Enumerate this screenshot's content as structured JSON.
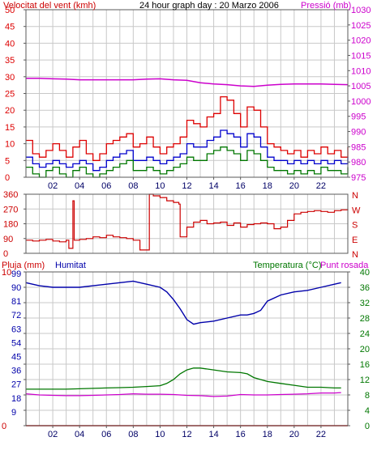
{
  "header": {
    "wind_label": "Velocitat del vent (kmh)",
    "title": "24 hour graph day : 20 Marzo 2006",
    "pressure_label": "Pressió (mb)"
  },
  "lower_header": {
    "rain_label": "Pluja (mm)",
    "humidity_label": "Humitat",
    "temperature_label": "Temperatura (°C)",
    "dewpoint_label": "Punt rosada"
  },
  "colors": {
    "wind_gust": "#dd0000",
    "wind_avg": "#0000cc",
    "wind_low": "#007700",
    "pressure": "#cc00cc",
    "direction": "#cc0000",
    "humidity": "#0000aa",
    "temperature": "#007700",
    "dewpoint": "#cc00cc",
    "rain": "#cc0000",
    "frame": "#5a5a5a",
    "grid": "#c8c8c8"
  },
  "x_ticks": [
    "02",
    "04",
    "06",
    "08",
    "10",
    "12",
    "14",
    "16",
    "18",
    "20",
    "22"
  ],
  "chart_data": [
    {
      "type": "line",
      "name": "wind-pressure",
      "x_range": [
        0,
        24
      ],
      "left_axis": {
        "label": "Velocitat del vent (kmh)",
        "ticks": [
          0,
          5,
          10,
          15,
          20,
          25,
          30,
          35,
          40,
          45,
          50
        ],
        "range": [
          0,
          50
        ]
      },
      "right_axis": {
        "label": "Pressió (mb)",
        "ticks": [
          975,
          980,
          985,
          990,
          995,
          1000,
          1005,
          1010,
          1015,
          1020,
          1025,
          1030
        ],
        "range": [
          975,
          1030
        ]
      },
      "grid": true,
      "series": [
        {
          "role": "gust",
          "axis": "left",
          "x": [
            0,
            0.5,
            1,
            1.5,
            2,
            2.5,
            3,
            3.5,
            4,
            4.5,
            5,
            5.5,
            6,
            6.5,
            7,
            7.5,
            8,
            8.5,
            9,
            9.5,
            10,
            10.5,
            11,
            11.5,
            12,
            12.5,
            13,
            13.5,
            14,
            14.5,
            15,
            15.5,
            16,
            16.5,
            17,
            17.5,
            18,
            18.5,
            19,
            19.5,
            20,
            20.5,
            21,
            21.5,
            22,
            22.5,
            23,
            23.5,
            24
          ],
          "y": [
            11,
            7,
            6,
            8,
            10,
            8,
            6,
            9,
            11,
            7,
            5,
            7,
            10,
            11,
            12,
            13,
            9,
            10,
            12,
            9,
            7,
            9,
            10,
            12,
            17,
            16,
            15,
            18,
            19,
            24,
            23,
            19,
            15,
            21,
            20,
            15,
            10,
            9,
            8,
            7,
            8,
            6,
            8,
            7,
            9,
            7,
            8,
            6,
            9
          ]
        },
        {
          "role": "avg",
          "axis": "left",
          "x": [
            0,
            0.5,
            1,
            1.5,
            2,
            2.5,
            3,
            3.5,
            4,
            4.5,
            5,
            5.5,
            6,
            6.5,
            7,
            7.5,
            8,
            8.5,
            9,
            9.5,
            10,
            10.5,
            11,
            11.5,
            12,
            12.5,
            13,
            13.5,
            14,
            14.5,
            15,
            15.5,
            16,
            16.5,
            17,
            17.5,
            18,
            18.5,
            19,
            19.5,
            20,
            20.5,
            21,
            21.5,
            22,
            22.5,
            23,
            23.5,
            24
          ],
          "y": [
            6,
            4,
            3,
            4,
            5,
            4,
            3,
            4,
            5,
            4,
            2,
            3,
            5,
            6,
            7,
            8,
            5,
            5,
            6,
            5,
            4,
            5,
            6,
            7,
            10,
            9,
            9,
            11,
            12,
            14,
            13,
            12,
            9,
            13,
            12,
            9,
            6,
            5,
            5,
            4,
            5,
            4,
            5,
            4,
            5,
            4,
            5,
            4,
            6
          ]
        },
        {
          "role": "low",
          "axis": "left",
          "x": [
            0,
            0.5,
            1,
            1.5,
            2,
            2.5,
            3,
            3.5,
            4,
            4.5,
            5,
            5.5,
            6,
            6.5,
            7,
            7.5,
            8,
            8.5,
            9,
            9.5,
            10,
            10.5,
            11,
            11.5,
            12,
            12.5,
            13,
            13.5,
            14,
            14.5,
            15,
            15.5,
            16,
            16.5,
            17,
            17.5,
            18,
            18.5,
            19,
            19.5,
            20,
            20.5,
            21,
            21.5,
            22,
            22.5,
            23,
            23.5,
            24
          ],
          "y": [
            3,
            1,
            0,
            2,
            3,
            1,
            0,
            2,
            3,
            1,
            0,
            1,
            2,
            3,
            4,
            5,
            2,
            2,
            3,
            2,
            1,
            2,
            3,
            4,
            6,
            5,
            5,
            7,
            8,
            9,
            8,
            7,
            5,
            8,
            7,
            5,
            3,
            2,
            2,
            1,
            2,
            1,
            2,
            1,
            3,
            2,
            2,
            1,
            3
          ]
        },
        {
          "role": "pressure",
          "axis": "right",
          "x": [
            0,
            1,
            2,
            3,
            4,
            5,
            6,
            7,
            8,
            9,
            10,
            11,
            12,
            13,
            14,
            15,
            16,
            17,
            18,
            19,
            20,
            21,
            22,
            23,
            24
          ],
          "y": [
            1007.5,
            1007.5,
            1007.3,
            1007.2,
            1007,
            1007,
            1007,
            1007,
            1007,
            1007.2,
            1007.3,
            1007,
            1006.8,
            1006,
            1005.6,
            1005.4,
            1005,
            1004.8,
            1005.2,
            1005.5,
            1005.6,
            1005.6,
            1005.6,
            1005.5,
            1005.4
          ]
        }
      ]
    },
    {
      "type": "line",
      "name": "wind-direction",
      "x_range": [
        0,
        24
      ],
      "left_axis": {
        "ticks": [
          0,
          90,
          180,
          270,
          360
        ],
        "range": [
          0,
          360
        ]
      },
      "right_axis": {
        "ticks": [
          "N",
          "W",
          "S",
          "E",
          "N"
        ]
      },
      "grid": true,
      "series": [
        {
          "role": "direction",
          "x": [
            0,
            0.5,
            1,
            1.5,
            2,
            2.5,
            3,
            3.2,
            3.4,
            3.5,
            3.6,
            4,
            4.5,
            5,
            5.5,
            6,
            6.5,
            7,
            7.5,
            8,
            8.5,
            9,
            9.2,
            9.4,
            9.5,
            10,
            10.5,
            11,
            11.4,
            11.5,
            12,
            12.5,
            13,
            13.5,
            14,
            14.5,
            15,
            15.5,
            16,
            16.5,
            17,
            17.5,
            18,
            18.5,
            19,
            19.5,
            20,
            20.5,
            21,
            21.5,
            22,
            22.5,
            23,
            23.5,
            24
          ],
          "y": [
            80,
            75,
            80,
            85,
            75,
            70,
            80,
            30,
            30,
            320,
            80,
            85,
            90,
            100,
            95,
            110,
            100,
            95,
            90,
            80,
            20,
            20,
            360,
            360,
            350,
            340,
            320,
            310,
            300,
            100,
            160,
            190,
            200,
            180,
            185,
            190,
            170,
            185,
            160,
            175,
            180,
            185,
            180,
            150,
            160,
            200,
            240,
            250,
            255,
            260,
            255,
            250,
            260,
            265,
            270
          ]
        }
      ]
    },
    {
      "type": "line",
      "name": "rain-humidity-temperature",
      "x_range": [
        0,
        24
      ],
      "left_axis": {
        "label": "Pluja (mm)",
        "ticks": [
          0,
          1,
          2,
          3,
          4,
          5,
          6,
          7,
          8,
          9,
          10
        ],
        "range": [
          0,
          10
        ],
        "tick_labels": [
          "0",
          "",
          "",
          "",
          "",
          "",
          "",
          "",
          "",
          "",
          "10"
        ]
      },
      "humidity_axis": {
        "label": "Humitat",
        "ticks": [
          0,
          9,
          18,
          27,
          36,
          45,
          54,
          63,
          72,
          81,
          90,
          99
        ],
        "range": [
          0,
          100
        ]
      },
      "right_axis": {
        "label": "Temperatura (°C)",
        "ticks": [
          0,
          2,
          4,
          6,
          8,
          10,
          12,
          14,
          16,
          18,
          20,
          22,
          24,
          26,
          28,
          30,
          32,
          34,
          36,
          38,
          40
        ],
        "range": [
          0,
          40
        ]
      },
      "grid": true,
      "series": [
        {
          "role": "humidity",
          "name": "Humitat",
          "x": [
            0,
            1,
            2,
            3,
            4,
            5,
            6,
            7,
            8,
            9,
            10,
            10.5,
            11,
            11.5,
            12,
            12.5,
            13,
            14,
            15,
            16,
            16.5,
            17,
            17.5,
            18,
            19,
            20,
            21,
            22,
            23,
            23.5
          ],
          "y": [
            93,
            91,
            90,
            90,
            90,
            91,
            92,
            93,
            94,
            92,
            90,
            87,
            82,
            76,
            69,
            66,
            67,
            68,
            70,
            72,
            72,
            73,
            75,
            81,
            85,
            87,
            88,
            90,
            92,
            93
          ]
        },
        {
          "role": "temperature",
          "name": "Temperatura (°C)",
          "x": [
            0,
            1,
            2,
            3,
            4,
            5,
            6,
            7,
            8,
            9,
            10,
            10.5,
            11,
            11.5,
            12,
            12.5,
            13,
            14,
            15,
            16,
            16.5,
            17,
            17.5,
            18,
            19,
            20,
            21,
            22,
            23,
            23.5
          ],
          "y": [
            9.5,
            9.5,
            9.5,
            9.5,
            9.6,
            9.7,
            9.8,
            9.9,
            10,
            10.2,
            10.4,
            11,
            12,
            13.5,
            14.5,
            15,
            15,
            14.5,
            14,
            13.8,
            13.5,
            12.5,
            12,
            11.5,
            11,
            10.5,
            10,
            10,
            9.8,
            9.8
          ]
        },
        {
          "role": "dewpoint",
          "name": "Punt rosada",
          "x": [
            0,
            1,
            2,
            3,
            4,
            5,
            6,
            7,
            8,
            9,
            10,
            11,
            12,
            13,
            14,
            15,
            16,
            17,
            18,
            19,
            20,
            21,
            22,
            23,
            23.5
          ],
          "y": [
            8.3,
            8,
            7.9,
            7.8,
            7.8,
            7.9,
            8,
            8.1,
            8.3,
            8.2,
            8.2,
            8.1,
            7.9,
            7.8,
            7.6,
            7.7,
            8.1,
            8,
            8,
            8.1,
            8.2,
            8.3,
            8.5,
            8.5,
            8.6
          ]
        },
        {
          "role": "rain",
          "name": "Pluja (mm)",
          "x": [
            0,
            24
          ],
          "y": [
            0,
            0
          ]
        }
      ]
    }
  ]
}
